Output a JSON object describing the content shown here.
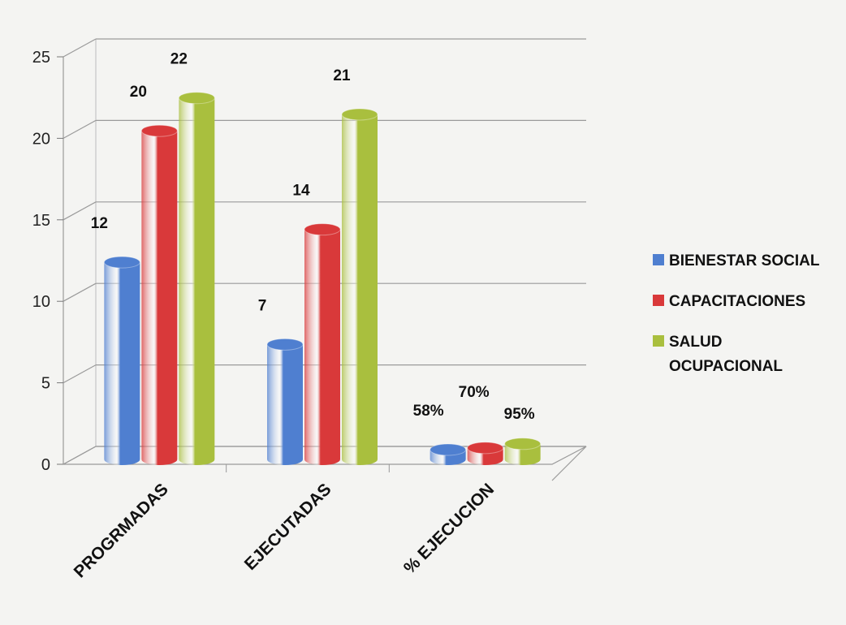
{
  "chart_data": {
    "type": "bar",
    "categories": [
      "PROGRMADAS",
      "EJECUTADAS",
      "% EJECUCION"
    ],
    "series": [
      {
        "name": "BIENESTAR SOCIAL",
        "values": [
          12,
          7,
          0.58
        ],
        "labels": [
          "12",
          "7",
          "58%"
        ],
        "color": "#4f7fd0"
      },
      {
        "name": "CAPACITACIONES",
        "values": [
          20,
          14,
          0.7
        ],
        "labels": [
          "20",
          "14",
          "70%"
        ],
        "color": "#d9393a"
      },
      {
        "name": "SALUD OCUPACIONAL",
        "values": [
          22,
          21,
          0.95
        ],
        "labels": [
          "22",
          "21",
          "95%"
        ],
        "color": "#a9bf3e"
      }
    ],
    "ylim": [
      0,
      25
    ],
    "yticks": [
      0,
      5,
      10,
      15,
      20,
      25
    ],
    "grid": true,
    "legend_position": "right",
    "style": "3d-cylinder"
  }
}
